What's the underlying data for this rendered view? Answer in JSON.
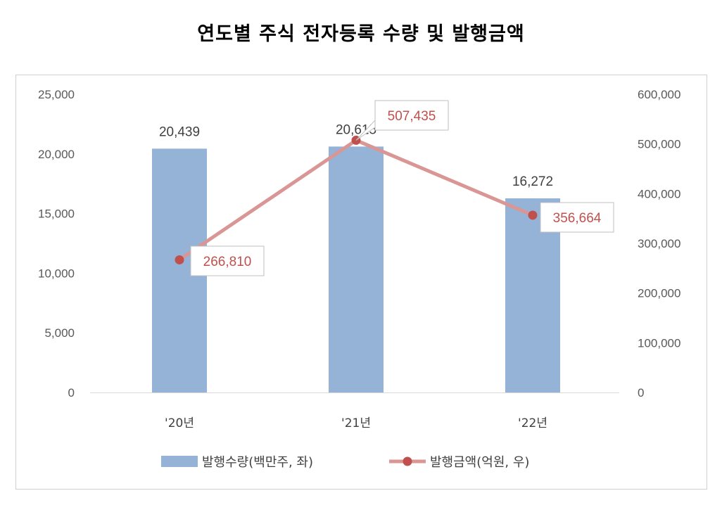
{
  "chart_data": {
    "type": "bar+line",
    "title": "연도별 주식 전자등록 수량 및 발행금액",
    "categories": [
      "'20년",
      "'21년",
      "'22년"
    ],
    "series": [
      {
        "name": "발행수량(백만주, 좌)",
        "type": "bar",
        "axis": "left",
        "values": [
          20439,
          20615,
          16272
        ],
        "labels": [
          "20,439",
          "20,615",
          "16,272"
        ],
        "color": "#95b3d7"
      },
      {
        "name": "발행금액(억원, 우)",
        "type": "line",
        "axis": "right",
        "values": [
          266810,
          507435,
          356664
        ],
        "labels": [
          "266,810",
          "507,435",
          "356,664"
        ],
        "color": "#c0504d",
        "line_color": "#d99694"
      }
    ],
    "y_left": {
      "min": 0,
      "max": 25000,
      "ticks": [
        "0",
        "5,000",
        "10,000",
        "15,000",
        "20,000",
        "25,000"
      ]
    },
    "y_right": {
      "min": 0,
      "max": 600000,
      "ticks": [
        "0",
        "100,000",
        "200,000",
        "300,000",
        "400,000",
        "500,000",
        "600,000"
      ]
    },
    "legend_position": "bottom",
    "grid": false
  }
}
